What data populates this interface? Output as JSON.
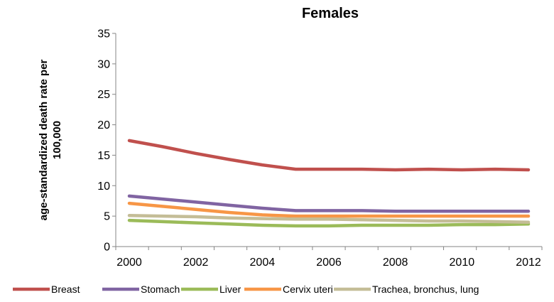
{
  "chart_data": {
    "type": "line",
    "title": "Females",
    "xlabel": "",
    "ylabel_lines": [
      "age-standardized death rate per",
      "100,000"
    ],
    "x": [
      2000,
      2001,
      2002,
      2003,
      2004,
      2005,
      2006,
      2007,
      2008,
      2009,
      2010,
      2011,
      2012
    ],
    "x_ticks": [
      "2000",
      "2002",
      "2004",
      "2006",
      "2008",
      "2010",
      "2012"
    ],
    "y_ticks": [
      "0",
      "5",
      "10",
      "15",
      "20",
      "25",
      "30",
      "35"
    ],
    "ylim": [
      0,
      35
    ],
    "grid": false,
    "legend_position": "bottom",
    "series": [
      {
        "name": "Breast",
        "color": "#c0504d",
        "values": [
          17.4,
          16.4,
          15.3,
          14.3,
          13.4,
          12.7,
          12.7,
          12.7,
          12.6,
          12.7,
          12.6,
          12.7,
          12.6
        ]
      },
      {
        "name": "Stomach",
        "color": "#8064a2",
        "values": [
          8.3,
          7.8,
          7.3,
          6.8,
          6.3,
          5.9,
          5.9,
          5.9,
          5.8,
          5.8,
          5.8,
          5.8,
          5.8
        ]
      },
      {
        "name": "Liver",
        "color": "#9bbb59",
        "values": [
          4.3,
          4.1,
          3.9,
          3.7,
          3.5,
          3.4,
          3.4,
          3.5,
          3.5,
          3.5,
          3.6,
          3.6,
          3.7
        ]
      },
      {
        "name": "Cervix uteri",
        "color": "#f79646",
        "values": [
          7.1,
          6.6,
          6.1,
          5.6,
          5.2,
          5.0,
          5.0,
          5.0,
          5.0,
          5.0,
          5.0,
          5.0,
          5.0
        ]
      },
      {
        "name": "Trachea, bronchus, lung",
        "color": "#c4bd97",
        "values": [
          5.1,
          5.0,
          4.9,
          4.7,
          4.6,
          4.5,
          4.5,
          4.4,
          4.3,
          4.2,
          4.2,
          4.1,
          4.0
        ]
      }
    ]
  }
}
